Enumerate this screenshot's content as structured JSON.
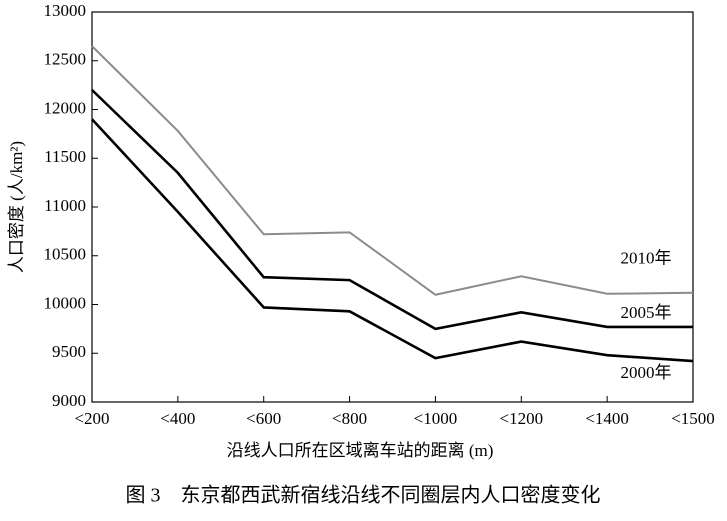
{
  "chart_data": {
    "type": "line",
    "title": "图 3　东京都西武新宿线沿线不同圈层内人口密度变化",
    "x_label": "沿线人口所在区域离车站的距离 (m)",
    "y_label": "人口密度 (人/km²)",
    "categories": [
      "<200",
      "<400",
      "<600",
      "<800",
      "<1000",
      "<1200",
      "<1400",
      "<1500"
    ],
    "series": [
      {
        "name": "2010年",
        "color": "#8c8c8c",
        "values": [
          12650,
          11780,
          10720,
          10740,
          10100,
          10290,
          10110,
          10120
        ]
      },
      {
        "name": "2005年",
        "color": "#000000",
        "values": [
          12200,
          11350,
          10280,
          10250,
          9750,
          9920,
          9770,
          9770
        ]
      },
      {
        "name": "2000年",
        "color": "#000000",
        "values": [
          11900,
          10950,
          9970,
          9930,
          9450,
          9620,
          9480,
          9420
        ]
      }
    ],
    "ylim": [
      9000,
      13000
    ],
    "yticks": [
      9000,
      9500,
      10000,
      10500,
      11000,
      11500,
      12000,
      12500,
      13000
    ],
    "grid": false
  }
}
